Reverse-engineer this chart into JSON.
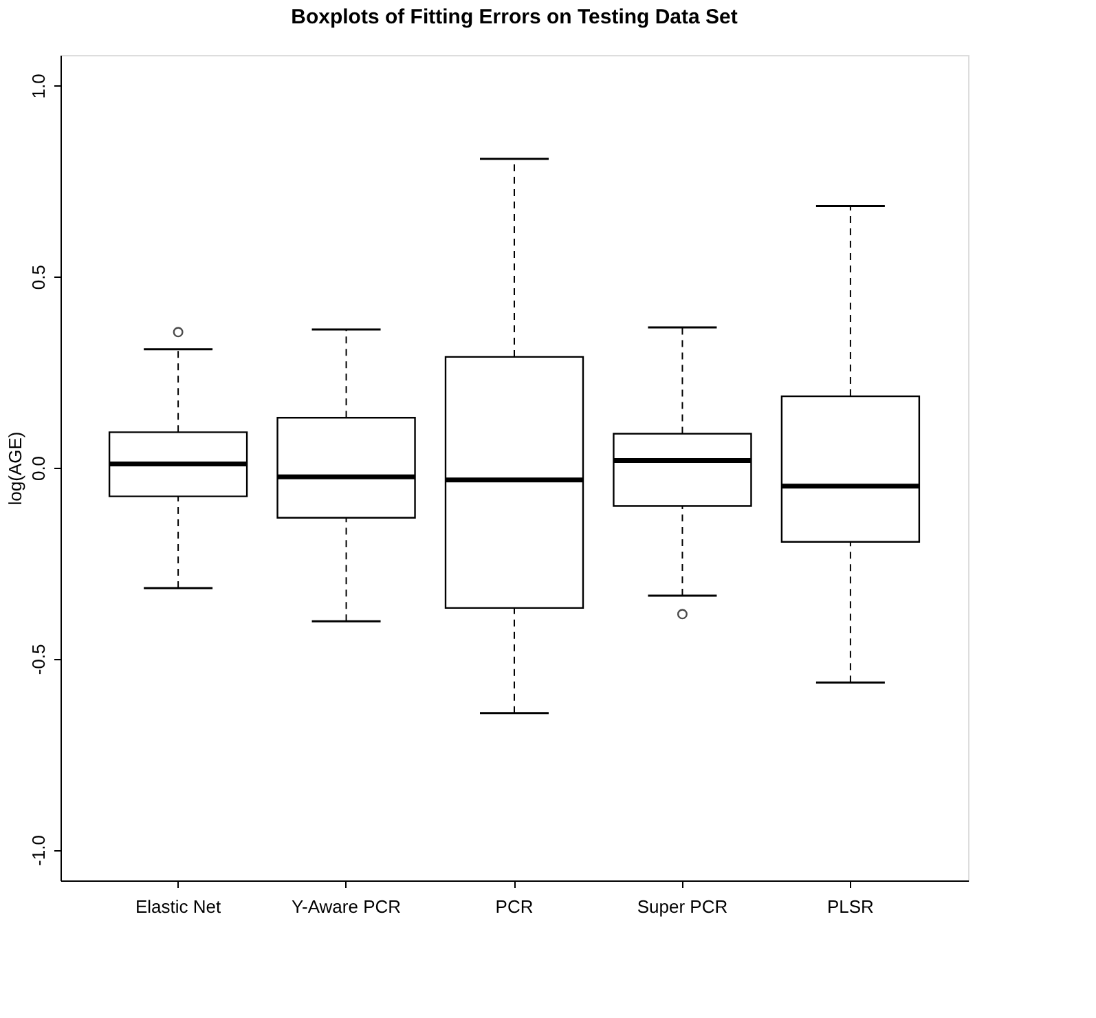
{
  "chart_data": {
    "type": "box",
    "title": "Boxplots of Fitting Errors on Testing Data Set",
    "ylabel": "log(AGE)",
    "categories": [
      "Elastic Net",
      "Y-Aware PCR",
      "PCR",
      "Super PCR",
      "PLSR"
    ],
    "boxes": [
      {
        "low": -0.315,
        "q1": -0.075,
        "median": 0.01,
        "q3": 0.093,
        "high": 0.31,
        "outliers": [
          0.355
        ]
      },
      {
        "low": -0.402,
        "q1": -0.131,
        "median": -0.024,
        "q3": 0.131,
        "high": 0.362
      },
      {
        "low": -0.642,
        "q1": -0.367,
        "median": -0.032,
        "q3": 0.29,
        "high": 0.808
      },
      {
        "low": -0.335,
        "q1": -0.1,
        "median": 0.019,
        "q3": 0.089,
        "high": 0.367,
        "outliers": [
          -0.383
        ]
      },
      {
        "low": -0.562,
        "q1": -0.194,
        "median": -0.048,
        "q3": 0.187,
        "high": 0.685
      }
    ],
    "ylim": [
      -1.08,
      1.08
    ],
    "yticks": [
      {
        "value": -1.0,
        "label": "-1.0"
      },
      -0.5,
      {
        "value": 0.0,
        "label": "0.0"
      },
      0.5,
      {
        "value": 1.0,
        "label": "1.0"
      }
    ],
    "grid": false
  }
}
